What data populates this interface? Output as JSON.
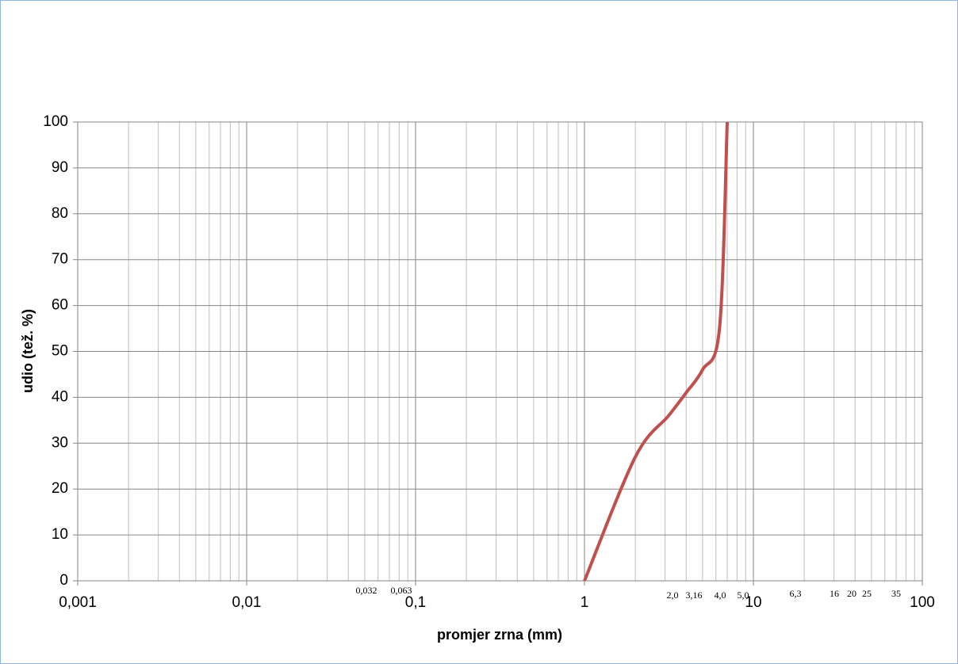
{
  "chart_data": {
    "type": "line",
    "x_label": "promjer zrna (mm)",
    "y_label": "udio (tež. %)",
    "log_x": true,
    "grid": true,
    "minor_grid": true,
    "xlim": [
      0.001,
      100
    ],
    "xticks": [
      {
        "value": 0.001,
        "label": "0,001"
      },
      {
        "value": 0.01,
        "label": "0,01"
      },
      {
        "value": 0.1,
        "label": "0,1"
      },
      1,
      10,
      100
    ],
    "ylim": [
      0,
      100
    ],
    "yticks": [
      0,
      10,
      20,
      30,
      40,
      50,
      60,
      70,
      80,
      90,
      100
    ],
    "series": [
      {
        "color": "#c0504d",
        "x": [
          1,
          2,
          3.15,
          4,
          5,
          6.3,
          7
        ],
        "values": [
          0,
          27,
          36,
          41,
          46,
          55,
          100
        ]
      }
    ],
    "annotations": [
      "0,032",
      "0,063",
      "2,0",
      "3,16",
      "4,0",
      "5,0",
      "6,3",
      "16",
      "20",
      "25",
      "35"
    ]
  }
}
